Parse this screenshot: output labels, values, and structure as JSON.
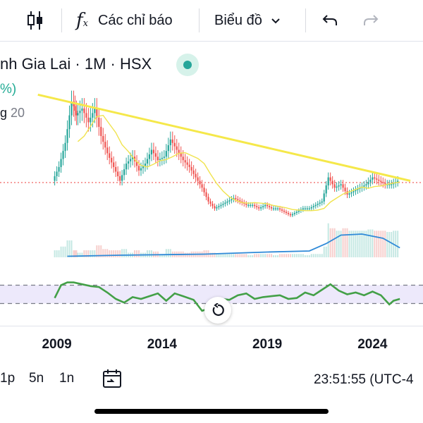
{
  "toolbar": {
    "indicators_label": "Các chỉ báo",
    "chart_type_label": "Biểu đồ",
    "candle_icon": "candlestick-icon",
    "fx_icon": "fx-icon",
    "undo_icon": "undo-icon",
    "redo_icon": "redo-icon"
  },
  "symbol": {
    "name": "nh Gia Lai · 1M · HSX",
    "change_pct": "%)",
    "ma_prefix": "g",
    "ma_length": "20",
    "status_color": "#26a69a"
  },
  "axis": {
    "years": [
      "2009",
      "2014",
      "2019",
      "2024"
    ]
  },
  "bottom": {
    "ranges": [
      "1p",
      "5n",
      "1n"
    ],
    "clock": "23:51:55 (UTC-4"
  },
  "colors": {
    "up": "#26a69a",
    "down": "#ef5350",
    "trendline": "#f5e84a",
    "ma": "#f0e34e",
    "volume_ma": "#2f8ad8",
    "rsi": "#43a047",
    "rsi_band": "#ede9fb",
    "price_line": "#ef5350"
  },
  "chart_data": {
    "type": "candlestick",
    "period": "1M",
    "x_ticks": [
      "2009",
      "2014",
      "2019",
      "2024"
    ],
    "close_series": [
      [
        2008.9,
        13
      ],
      [
        2009.2,
        17
      ],
      [
        2009.5,
        24
      ],
      [
        2009.8,
        36
      ],
      [
        2010.0,
        32
      ],
      [
        2010.3,
        34
      ],
      [
        2010.6,
        30
      ],
      [
        2010.9,
        34
      ],
      [
        2011.2,
        26
      ],
      [
        2011.5,
        21
      ],
      [
        2011.8,
        17
      ],
      [
        2012.1,
        13
      ],
      [
        2012.4,
        18
      ],
      [
        2012.7,
        20
      ],
      [
        2013.0,
        16
      ],
      [
        2013.3,
        18
      ],
      [
        2013.6,
        22
      ],
      [
        2013.9,
        19
      ],
      [
        2014.2,
        20
      ],
      [
        2014.5,
        25
      ],
      [
        2014.8,
        22
      ],
      [
        2015.1,
        19
      ],
      [
        2015.4,
        17
      ],
      [
        2015.7,
        14
      ],
      [
        2016.0,
        11
      ],
      [
        2016.3,
        7
      ],
      [
        2016.6,
        5
      ],
      [
        2016.9,
        6
      ],
      [
        2017.2,
        7
      ],
      [
        2017.5,
        8
      ],
      [
        2017.8,
        7
      ],
      [
        2018.1,
        6
      ],
      [
        2018.4,
        6
      ],
      [
        2018.7,
        5
      ],
      [
        2019.0,
        6
      ],
      [
        2019.3,
        5
      ],
      [
        2019.6,
        5
      ],
      [
        2019.9,
        4
      ],
      [
        2020.2,
        3
      ],
      [
        2020.5,
        4
      ],
      [
        2020.8,
        5
      ],
      [
        2021.1,
        5
      ],
      [
        2021.4,
        6
      ],
      [
        2021.7,
        7
      ],
      [
        2022.0,
        14
      ],
      [
        2022.3,
        11
      ],
      [
        2022.6,
        12
      ],
      [
        2022.9,
        9
      ],
      [
        2023.2,
        10
      ],
      [
        2023.5,
        11
      ],
      [
        2023.8,
        12
      ],
      [
        2024.1,
        14
      ],
      [
        2024.4,
        13
      ],
      [
        2024.7,
        12
      ],
      [
        2025.0,
        12
      ],
      [
        2025.3,
        13
      ]
    ],
    "volume_ma": [
      [
        2009.5,
        0.1
      ],
      [
        2012.0,
        0.2
      ],
      [
        2016.0,
        0.3
      ],
      [
        2019.0,
        0.5
      ],
      [
        2021.0,
        0.6
      ],
      [
        2021.8,
        1.3
      ],
      [
        2022.5,
        2.1
      ],
      [
        2023.5,
        2.2
      ],
      [
        2024.5,
        1.8
      ],
      [
        2025.3,
        0.9
      ]
    ],
    "rsi": [
      [
        2008.9,
        42
      ],
      [
        2009.2,
        70
      ],
      [
        2009.5,
        76
      ],
      [
        2009.8,
        76
      ],
      [
        2010.2,
        72
      ],
      [
        2010.6,
        68
      ],
      [
        2011.0,
        66
      ],
      [
        2011.4,
        54
      ],
      [
        2011.8,
        40
      ],
      [
        2012.2,
        32
      ],
      [
        2012.6,
        44
      ],
      [
        2013.0,
        40
      ],
      [
        2013.4,
        46
      ],
      [
        2013.8,
        52
      ],
      [
        2014.2,
        36
      ],
      [
        2014.6,
        52
      ],
      [
        2015.0,
        46
      ],
      [
        2015.5,
        38
      ],
      [
        2015.9,
        14
      ],
      [
        2016.3,
        20
      ],
      [
        2016.8,
        40
      ],
      [
        2017.2,
        38
      ],
      [
        2017.6,
        48
      ],
      [
        2018.0,
        52
      ],
      [
        2018.4,
        40
      ],
      [
        2018.8,
        44
      ],
      [
        2019.2,
        46
      ],
      [
        2019.6,
        48
      ],
      [
        2020.0,
        40
      ],
      [
        2020.4,
        42
      ],
      [
        2020.8,
        54
      ],
      [
        2021.2,
        48
      ],
      [
        2021.6,
        60
      ],
      [
        2022.0,
        72
      ],
      [
        2022.4,
        58
      ],
      [
        2022.8,
        50
      ],
      [
        2023.2,
        54
      ],
      [
        2023.6,
        48
      ],
      [
        2024.0,
        56
      ],
      [
        2024.4,
        48
      ],
      [
        2024.8,
        28
      ],
      [
        2025.0,
        36
      ],
      [
        2025.3,
        40
      ]
    ],
    "trendline": [
      [
        2008.1,
        38
      ],
      [
        2025.8,
        13
      ]
    ],
    "price_line": 12.5,
    "rsi_bands": [
      30,
      70
    ],
    "xlim": [
      2006.3,
      2026.4
    ],
    "price_range": [
      0,
      44
    ]
  }
}
